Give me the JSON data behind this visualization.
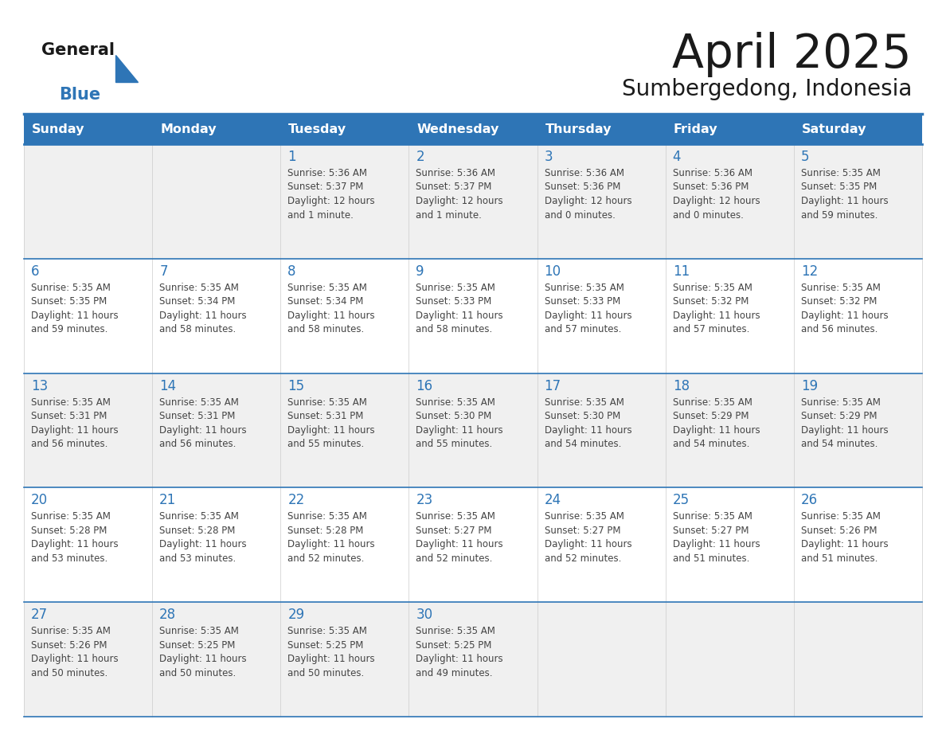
{
  "title": "April 2025",
  "subtitle": "Sumbergedong, Indonesia",
  "days_of_week": [
    "Sunday",
    "Monday",
    "Tuesday",
    "Wednesday",
    "Thursday",
    "Friday",
    "Saturday"
  ],
  "header_bg": "#2E75B6",
  "header_text_color": "#FFFFFF",
  "row_bg_light": "#F0F0F0",
  "row_bg_white": "#FFFFFF",
  "cell_border_color": "#2E75B6",
  "title_color": "#1a1a1a",
  "subtitle_color": "#1a1a1a",
  "text_color": "#444444",
  "day_number_color": "#2E75B6",
  "calendar_data": [
    [
      "",
      "",
      "1\nSunrise: 5:36 AM\nSunset: 5:37 PM\nDaylight: 12 hours\nand 1 minute.",
      "2\nSunrise: 5:36 AM\nSunset: 5:37 PM\nDaylight: 12 hours\nand 1 minute.",
      "3\nSunrise: 5:36 AM\nSunset: 5:36 PM\nDaylight: 12 hours\nand 0 minutes.",
      "4\nSunrise: 5:36 AM\nSunset: 5:36 PM\nDaylight: 12 hours\nand 0 minutes.",
      "5\nSunrise: 5:35 AM\nSunset: 5:35 PM\nDaylight: 11 hours\nand 59 minutes."
    ],
    [
      "6\nSunrise: 5:35 AM\nSunset: 5:35 PM\nDaylight: 11 hours\nand 59 minutes.",
      "7\nSunrise: 5:35 AM\nSunset: 5:34 PM\nDaylight: 11 hours\nand 58 minutes.",
      "8\nSunrise: 5:35 AM\nSunset: 5:34 PM\nDaylight: 11 hours\nand 58 minutes.",
      "9\nSunrise: 5:35 AM\nSunset: 5:33 PM\nDaylight: 11 hours\nand 58 minutes.",
      "10\nSunrise: 5:35 AM\nSunset: 5:33 PM\nDaylight: 11 hours\nand 57 minutes.",
      "11\nSunrise: 5:35 AM\nSunset: 5:32 PM\nDaylight: 11 hours\nand 57 minutes.",
      "12\nSunrise: 5:35 AM\nSunset: 5:32 PM\nDaylight: 11 hours\nand 56 minutes."
    ],
    [
      "13\nSunrise: 5:35 AM\nSunset: 5:31 PM\nDaylight: 11 hours\nand 56 minutes.",
      "14\nSunrise: 5:35 AM\nSunset: 5:31 PM\nDaylight: 11 hours\nand 56 minutes.",
      "15\nSunrise: 5:35 AM\nSunset: 5:31 PM\nDaylight: 11 hours\nand 55 minutes.",
      "16\nSunrise: 5:35 AM\nSunset: 5:30 PM\nDaylight: 11 hours\nand 55 minutes.",
      "17\nSunrise: 5:35 AM\nSunset: 5:30 PM\nDaylight: 11 hours\nand 54 minutes.",
      "18\nSunrise: 5:35 AM\nSunset: 5:29 PM\nDaylight: 11 hours\nand 54 minutes.",
      "19\nSunrise: 5:35 AM\nSunset: 5:29 PM\nDaylight: 11 hours\nand 54 minutes."
    ],
    [
      "20\nSunrise: 5:35 AM\nSunset: 5:28 PM\nDaylight: 11 hours\nand 53 minutes.",
      "21\nSunrise: 5:35 AM\nSunset: 5:28 PM\nDaylight: 11 hours\nand 53 minutes.",
      "22\nSunrise: 5:35 AM\nSunset: 5:28 PM\nDaylight: 11 hours\nand 52 minutes.",
      "23\nSunrise: 5:35 AM\nSunset: 5:27 PM\nDaylight: 11 hours\nand 52 minutes.",
      "24\nSunrise: 5:35 AM\nSunset: 5:27 PM\nDaylight: 11 hours\nand 52 minutes.",
      "25\nSunrise: 5:35 AM\nSunset: 5:27 PM\nDaylight: 11 hours\nand 51 minutes.",
      "26\nSunrise: 5:35 AM\nSunset: 5:26 PM\nDaylight: 11 hours\nand 51 minutes."
    ],
    [
      "27\nSunrise: 5:35 AM\nSunset: 5:26 PM\nDaylight: 11 hours\nand 50 minutes.",
      "28\nSunrise: 5:35 AM\nSunset: 5:25 PM\nDaylight: 11 hours\nand 50 minutes.",
      "29\nSunrise: 5:35 AM\nSunset: 5:25 PM\nDaylight: 11 hours\nand 50 minutes.",
      "30\nSunrise: 5:35 AM\nSunset: 5:25 PM\nDaylight: 11 hours\nand 49 minutes.",
      "",
      "",
      ""
    ]
  ]
}
